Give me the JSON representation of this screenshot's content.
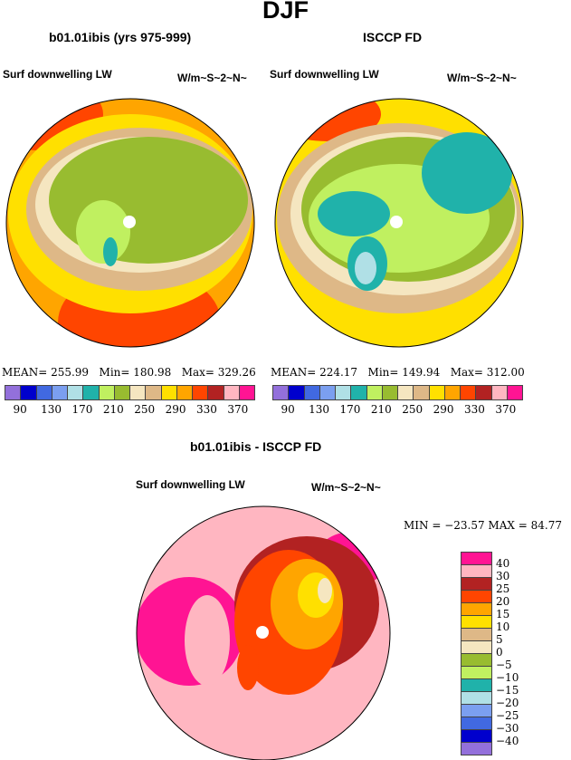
{
  "figure_title": "DJF",
  "panels": [
    {
      "title": "b01.01ibis (yrs 975-999)",
      "variable": "Surf downwelling LW",
      "units": "W/m~S~2~N~",
      "stats": {
        "mean": "MEAN= 255.99",
        "min": "Min= 180.98",
        "max": "Max= 329.26"
      }
    },
    {
      "title": "ISCCP FD",
      "variable": "Surf downwelling LW",
      "units": "W/m~S~2~N~",
      "stats": {
        "mean": "MEAN= 224.17",
        "min": "Min= 149.94",
        "max": "Max= 312.00"
      }
    }
  ],
  "diff_panel": {
    "title": "b01.01ibis - ISCCP FD",
    "variable": "Surf downwelling LW",
    "units": "W/m~S~2~N~",
    "minmax": "MIN = −23.57 MAX =  84.77"
  },
  "colors": [
    "#9370db",
    "#0000cd",
    "#4169e1",
    "#7b9ff0",
    "#b0e0e6",
    "#20b2aa",
    "#c0f060",
    "#98bc30",
    "#f5e6c0",
    "#deb887",
    "#ffe000",
    "#ffa500",
    "#ff4500",
    "#b22222",
    "#ffb6c1",
    "#ff1493"
  ],
  "abs_labels": [
    "90",
    "130",
    "170",
    "210",
    "250",
    "290",
    "330",
    "370"
  ],
  "diff_labels": [
    "40",
    "30",
    "25",
    "20",
    "15",
    "10",
    "5",
    "0",
    "−5",
    "−10",
    "−15",
    "−20",
    "−25",
    "−30",
    "−40"
  ]
}
